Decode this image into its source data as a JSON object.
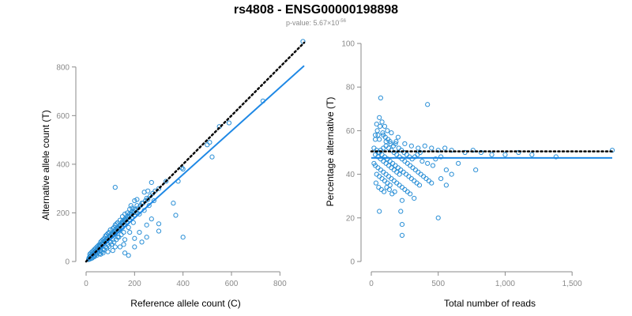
{
  "figure": {
    "title": "rs4808 - ENSG00000198898",
    "subtitle_prefix": "p-value: 5.67×10",
    "subtitle_exponent": "-56"
  },
  "colors": {
    "points": "#2a8fd6",
    "fit_line": "#1e88e5",
    "reference_line": "#000000",
    "axis": "#8a8a8a"
  },
  "chart_data": [
    {
      "type": "scatter",
      "xlabel": "Reference allele count (C)",
      "ylabel": "Alternative allele count (T)",
      "xlim": [
        0,
        900
      ],
      "ylim": [
        0,
        900
      ],
      "xticks": [
        0,
        200,
        400,
        600,
        800
      ],
      "yticks": [
        0,
        200,
        400,
        600,
        800
      ],
      "xtick_labels": [
        "0",
        "200",
        "400",
        "600",
        "800"
      ],
      "ytick_labels": [
        "0",
        "200",
        "400",
        "600",
        "800"
      ],
      "reference_line": {
        "style": "dotted",
        "x": [
          0,
          900
        ],
        "y": [
          0,
          900
        ]
      },
      "fit_line": {
        "style": "solid",
        "x": [
          0,
          900
        ],
        "y": [
          0,
          805
        ]
      },
      "points": [
        [
          895,
          905
        ],
        [
          730,
          660
        ],
        [
          590,
          570
        ],
        [
          550,
          555
        ],
        [
          510,
          490
        ],
        [
          500,
          480
        ],
        [
          520,
          430
        ],
        [
          395,
          385
        ],
        [
          400,
          380
        ],
        [
          380,
          330
        ],
        [
          330,
          330
        ],
        [
          120,
          305
        ],
        [
          270,
          325
        ],
        [
          300,
          300
        ],
        [
          255,
          290
        ],
        [
          240,
          285
        ],
        [
          250,
          260
        ],
        [
          230,
          240
        ],
        [
          210,
          230
        ],
        [
          190,
          220
        ],
        [
          185,
          230
        ],
        [
          200,
          250
        ],
        [
          210,
          255
        ],
        [
          180,
          215
        ],
        [
          170,
          200
        ],
        [
          160,
          195
        ],
        [
          150,
          185
        ],
        [
          160,
          175
        ],
        [
          150,
          165
        ],
        [
          140,
          170
        ],
        [
          130,
          160
        ],
        [
          125,
          155
        ],
        [
          120,
          150
        ],
        [
          115,
          140
        ],
        [
          110,
          135
        ],
        [
          100,
          130
        ],
        [
          95,
          120
        ],
        [
          90,
          115
        ],
        [
          85,
          110
        ],
        [
          80,
          105
        ],
        [
          75,
          95
        ],
        [
          70,
          90
        ],
        [
          65,
          85
        ],
        [
          60,
          80
        ],
        [
          55,
          70
        ],
        [
          50,
          65
        ],
        [
          45,
          60
        ],
        [
          40,
          55
        ],
        [
          35,
          50
        ],
        [
          30,
          45
        ],
        [
          25,
          40
        ],
        [
          20,
          35
        ],
        [
          15,
          30
        ],
        [
          20,
          25
        ],
        [
          30,
          30
        ],
        [
          40,
          40
        ],
        [
          50,
          50
        ],
        [
          60,
          60
        ],
        [
          70,
          70
        ],
        [
          80,
          80
        ],
        [
          90,
          90
        ],
        [
          100,
          100
        ],
        [
          110,
          110
        ],
        [
          120,
          115
        ],
        [
          130,
          125
        ],
        [
          140,
          130
        ],
        [
          150,
          140
        ],
        [
          160,
          150
        ],
        [
          170,
          160
        ],
        [
          180,
          170
        ],
        [
          190,
          180
        ],
        [
          200,
          190
        ],
        [
          210,
          200
        ],
        [
          220,
          195
        ],
        [
          240,
          210
        ],
        [
          260,
          230
        ],
        [
          280,
          250
        ],
        [
          270,
          175
        ],
        [
          250,
          150
        ],
        [
          300,
          155
        ],
        [
          360,
          240
        ],
        [
          370,
          190
        ],
        [
          400,
          100
        ],
        [
          300,
          125
        ],
        [
          220,
          120
        ],
        [
          200,
          95
        ],
        [
          180,
          120
        ],
        [
          160,
          90
        ],
        [
          155,
          70
        ],
        [
          140,
          60
        ],
        [
          120,
          60
        ],
        [
          110,
          45
        ],
        [
          90,
          40
        ],
        [
          70,
          35
        ],
        [
          60,
          30
        ],
        [
          160,
          35
        ],
        [
          200,
          60
        ],
        [
          175,
          25
        ],
        [
          230,
          80
        ],
        [
          250,
          100
        ],
        [
          130,
          100
        ],
        [
          110,
          90
        ],
        [
          100,
          80
        ],
        [
          90,
          70
        ],
        [
          80,
          60
        ],
        [
          70,
          50
        ],
        [
          60,
          45
        ],
        [
          50,
          40
        ],
        [
          45,
          35
        ],
        [
          40,
          30
        ],
        [
          35,
          25
        ],
        [
          30,
          20
        ],
        [
          25,
          15
        ],
        [
          20,
          12
        ],
        [
          15,
          10
        ],
        [
          10,
          8
        ],
        [
          15,
          20
        ],
        [
          25,
          28
        ],
        [
          35,
          38
        ],
        [
          45,
          48
        ],
        [
          55,
          62
        ],
        [
          65,
          72
        ],
        [
          75,
          82
        ],
        [
          85,
          92
        ],
        [
          95,
          102
        ],
        [
          105,
          112
        ],
        [
          115,
          118
        ],
        [
          125,
          130
        ],
        [
          135,
          138
        ],
        [
          145,
          150
        ],
        [
          155,
          160
        ],
        [
          165,
          170
        ],
        [
          175,
          180
        ],
        [
          185,
          190
        ],
        [
          195,
          200
        ],
        [
          205,
          210
        ],
        [
          215,
          220
        ],
        [
          225,
          230
        ],
        [
          235,
          240
        ],
        [
          245,
          250
        ],
        [
          255,
          255
        ],
        [
          265,
          270
        ],
        [
          275,
          280
        ],
        [
          285,
          290
        ],
        [
          195,
          160
        ],
        [
          175,
          140
        ],
        [
          155,
          120
        ],
        [
          145,
          110
        ],
        [
          135,
          100
        ],
        [
          125,
          90
        ],
        [
          115,
          80
        ],
        [
          105,
          70
        ],
        [
          95,
          62
        ],
        [
          85,
          55
        ],
        [
          75,
          48
        ],
        [
          65,
          40
        ],
        [
          55,
          32
        ],
        [
          45,
          26
        ],
        [
          35,
          20
        ],
        [
          25,
          14
        ],
        [
          12,
          15
        ],
        [
          18,
          22
        ],
        [
          28,
          33
        ],
        [
          38,
          43
        ],
        [
          48,
          53
        ],
        [
          58,
          66
        ],
        [
          68,
          76
        ],
        [
          78,
          86
        ],
        [
          88,
          96
        ],
        [
          98,
          106
        ],
        [
          108,
          116
        ],
        [
          118,
          124
        ],
        [
          128,
          136
        ],
        [
          138,
          146
        ],
        [
          148,
          156
        ],
        [
          158,
          166
        ],
        [
          168,
          176
        ],
        [
          178,
          186
        ],
        [
          188,
          196
        ],
        [
          198,
          204
        ],
        [
          120,
          130
        ],
        [
          130,
          140
        ],
        [
          140,
          150
        ],
        [
          150,
          160
        ],
        [
          160,
          170
        ],
        [
          170,
          185
        ],
        [
          180,
          195
        ],
        [
          190,
          205
        ],
        [
          200,
          215
        ]
      ]
    },
    {
      "type": "scatter",
      "xlabel": "Total number of reads",
      "ylabel": "Percentage alternative (T)",
      "xlim": [
        0,
        1800
      ],
      "ylim": [
        0,
        100
      ],
      "xticks": [
        0,
        500,
        1000,
        1500
      ],
      "yticks": [
        0,
        20,
        40,
        60,
        80,
        100
      ],
      "xtick_labels": [
        "0",
        "500",
        "1,000",
        "1,500"
      ],
      "ytick_labels": [
        "0",
        "20",
        "40",
        "60",
        "80",
        "100"
      ],
      "reference_line": {
        "style": "dotted",
        "x": [
          0,
          1800
        ],
        "y": [
          50.5,
          50.5
        ]
      },
      "fit_line": {
        "style": "solid",
        "x": [
          0,
          1800
        ],
        "y": [
          47.5,
          47.5
        ]
      },
      "points": [
        [
          70,
          75
        ],
        [
          420,
          72
        ],
        [
          60,
          66
        ],
        [
          80,
          64
        ],
        [
          40,
          63
        ],
        [
          100,
          62
        ],
        [
          120,
          60
        ],
        [
          150,
          59
        ],
        [
          50,
          58
        ],
        [
          90,
          58
        ],
        [
          200,
          57
        ],
        [
          30,
          56
        ],
        [
          60,
          56
        ],
        [
          110,
          55
        ],
        [
          140,
          55
        ],
        [
          180,
          54
        ],
        [
          250,
          54
        ],
        [
          300,
          53
        ],
        [
          350,
          52
        ],
        [
          400,
          53
        ],
        [
          450,
          52
        ],
        [
          500,
          51
        ],
        [
          550,
          52
        ],
        [
          600,
          51
        ],
        [
          700,
          50
        ],
        [
          760,
          51
        ],
        [
          820,
          50
        ],
        [
          900,
          49
        ],
        [
          1000,
          49
        ],
        [
          1100,
          50
        ],
        [
          1200,
          49
        ],
        [
          1380,
          48
        ],
        [
          1800,
          51
        ],
        [
          20,
          52
        ],
        [
          40,
          51
        ],
        [
          60,
          50
        ],
        [
          80,
          49
        ],
        [
          100,
          48
        ],
        [
          120,
          47
        ],
        [
          140,
          46
        ],
        [
          160,
          45
        ],
        [
          180,
          44
        ],
        [
          200,
          43
        ],
        [
          220,
          42
        ],
        [
          240,
          41
        ],
        [
          260,
          40
        ],
        [
          280,
          39
        ],
        [
          300,
          38
        ],
        [
          320,
          37
        ],
        [
          340,
          36
        ],
        [
          360,
          35
        ],
        [
          20,
          45
        ],
        [
          30,
          44
        ],
        [
          50,
          43
        ],
        [
          70,
          42
        ],
        [
          90,
          41
        ],
        [
          110,
          40
        ],
        [
          130,
          39
        ],
        [
          150,
          38
        ],
        [
          170,
          37
        ],
        [
          190,
          36
        ],
        [
          210,
          35
        ],
        [
          230,
          34
        ],
        [
          250,
          33
        ],
        [
          270,
          32
        ],
        [
          290,
          31
        ],
        [
          230,
          28
        ],
        [
          320,
          29
        ],
        [
          220,
          23
        ],
        [
          60,
          23
        ],
        [
          500,
          20
        ],
        [
          230,
          17
        ],
        [
          230,
          12
        ],
        [
          50,
          48
        ],
        [
          70,
          47
        ],
        [
          90,
          46
        ],
        [
          110,
          45
        ],
        [
          130,
          44
        ],
        [
          150,
          43
        ],
        [
          170,
          42
        ],
        [
          190,
          41
        ],
        [
          210,
          40
        ],
        [
          40,
          40
        ],
        [
          60,
          39
        ],
        [
          80,
          38
        ],
        [
          100,
          37
        ],
        [
          120,
          36
        ],
        [
          140,
          35
        ],
        [
          30,
          49
        ],
        [
          50,
          50
        ],
        [
          70,
          51
        ],
        [
          90,
          52
        ],
        [
          110,
          53
        ],
        [
          130,
          52
        ],
        [
          150,
          51
        ],
        [
          170,
          50
        ],
        [
          190,
          49
        ],
        [
          210,
          48
        ],
        [
          230,
          47
        ],
        [
          250,
          46
        ],
        [
          270,
          45
        ],
        [
          290,
          44
        ],
        [
          310,
          43
        ],
        [
          330,
          42
        ],
        [
          350,
          41
        ],
        [
          370,
          40
        ],
        [
          390,
          39
        ],
        [
          410,
          38
        ],
        [
          430,
          37
        ],
        [
          450,
          36
        ],
        [
          380,
          46
        ],
        [
          420,
          45
        ],
        [
          460,
          44
        ],
        [
          480,
          47
        ],
        [
          520,
          48
        ],
        [
          560,
          42
        ],
        [
          600,
          40
        ],
        [
          650,
          45
        ],
        [
          780,
          42
        ],
        [
          560,
          35
        ],
        [
          520,
          38
        ],
        [
          30,
          58
        ],
        [
          45,
          60
        ],
        [
          65,
          62
        ],
        [
          85,
          59
        ],
        [
          105,
          57
        ],
        [
          125,
          56
        ],
        [
          145,
          54
        ],
        [
          165,
          53
        ],
        [
          185,
          55
        ],
        [
          205,
          52
        ],
        [
          225,
          51
        ],
        [
          245,
          50
        ],
        [
          265,
          49
        ],
        [
          285,
          48
        ],
        [
          305,
          47
        ],
        [
          325,
          48
        ],
        [
          345,
          49
        ],
        [
          365,
          50
        ],
        [
          35,
          36
        ],
        [
          55,
          34
        ],
        [
          75,
          33
        ],
        [
          95,
          32
        ],
        [
          115,
          34
        ],
        [
          135,
          33
        ],
        [
          155,
          31
        ],
        [
          175,
          32
        ]
      ]
    }
  ]
}
